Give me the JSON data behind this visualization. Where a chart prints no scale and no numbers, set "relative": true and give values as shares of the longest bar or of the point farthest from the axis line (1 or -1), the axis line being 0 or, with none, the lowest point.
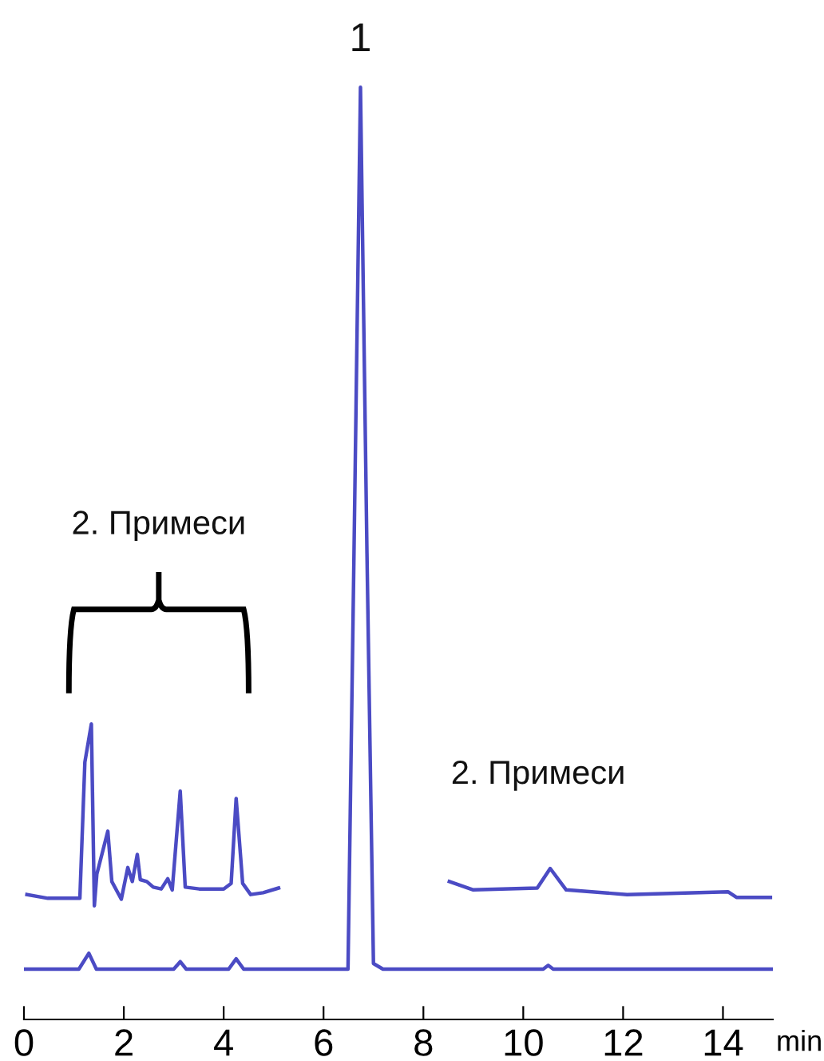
{
  "chart_data": {
    "type": "line",
    "relative": true,
    "xlabel": "min",
    "xlim": [
      0,
      15
    ],
    "xticks": [
      0,
      2,
      4,
      6,
      8,
      10,
      12,
      14
    ],
    "grid": false,
    "marker": "none",
    "line_style": "solid",
    "series": [
      {
        "color": "#4b4bc4",
        "x": [
          0,
          1.1,
          1.3,
          1.45,
          3.0,
          3.13,
          3.25,
          4.1,
          4.25,
          4.4,
          6.49,
          6.61,
          6.74,
          6.87,
          7.0,
          7.19,
          10.4,
          10.5,
          10.6,
          15
        ],
        "values": [
          0.054,
          0.054,
          0.071,
          0.054,
          0.054,
          0.062,
          0.054,
          0.054,
          0.065,
          0.054,
          0.054,
          0.5,
          1.0,
          0.5,
          0.06,
          0.054,
          0.054,
          0.058,
          0.054,
          0.054
        ]
      },
      {
        "color": "#4b4bc4",
        "x": [
          0.06,
          0.48,
          1.12,
          1.22,
          1.35,
          1.41,
          1.46,
          1.68,
          1.76,
          1.95,
          2.08,
          2.17,
          2.27,
          2.33,
          2.46,
          2.59,
          2.75,
          2.88,
          2.97,
          3.13,
          3.23,
          3.51,
          3.74,
          4.0,
          4.15,
          4.25,
          4.38,
          4.54,
          4.79,
          5.1,
          6.8,
          8.52,
          9.0,
          10.28,
          10.54,
          10.86,
          12.08,
          14.1,
          14.27,
          14.95
        ],
        "values": [
          0.134,
          0.13,
          0.13,
          0.276,
          0.317,
          0.122,
          0.156,
          0.202,
          0.148,
          0.129,
          0.163,
          0.148,
          0.177,
          0.15,
          0.148,
          0.142,
          0.14,
          0.151,
          0.139,
          0.245,
          0.142,
          0.14,
          0.14,
          0.14,
          0.146,
          0.237,
          0.146,
          0.134,
          0.136,
          0.141,
          null,
          0.148,
          0.139,
          0.141,
          0.162,
          0.139,
          0.134,
          0.137,
          0.131,
          0.131
        ]
      }
    ],
    "annotations": [
      "1",
      "2. Примеси",
      "2. Примеси"
    ]
  }
}
